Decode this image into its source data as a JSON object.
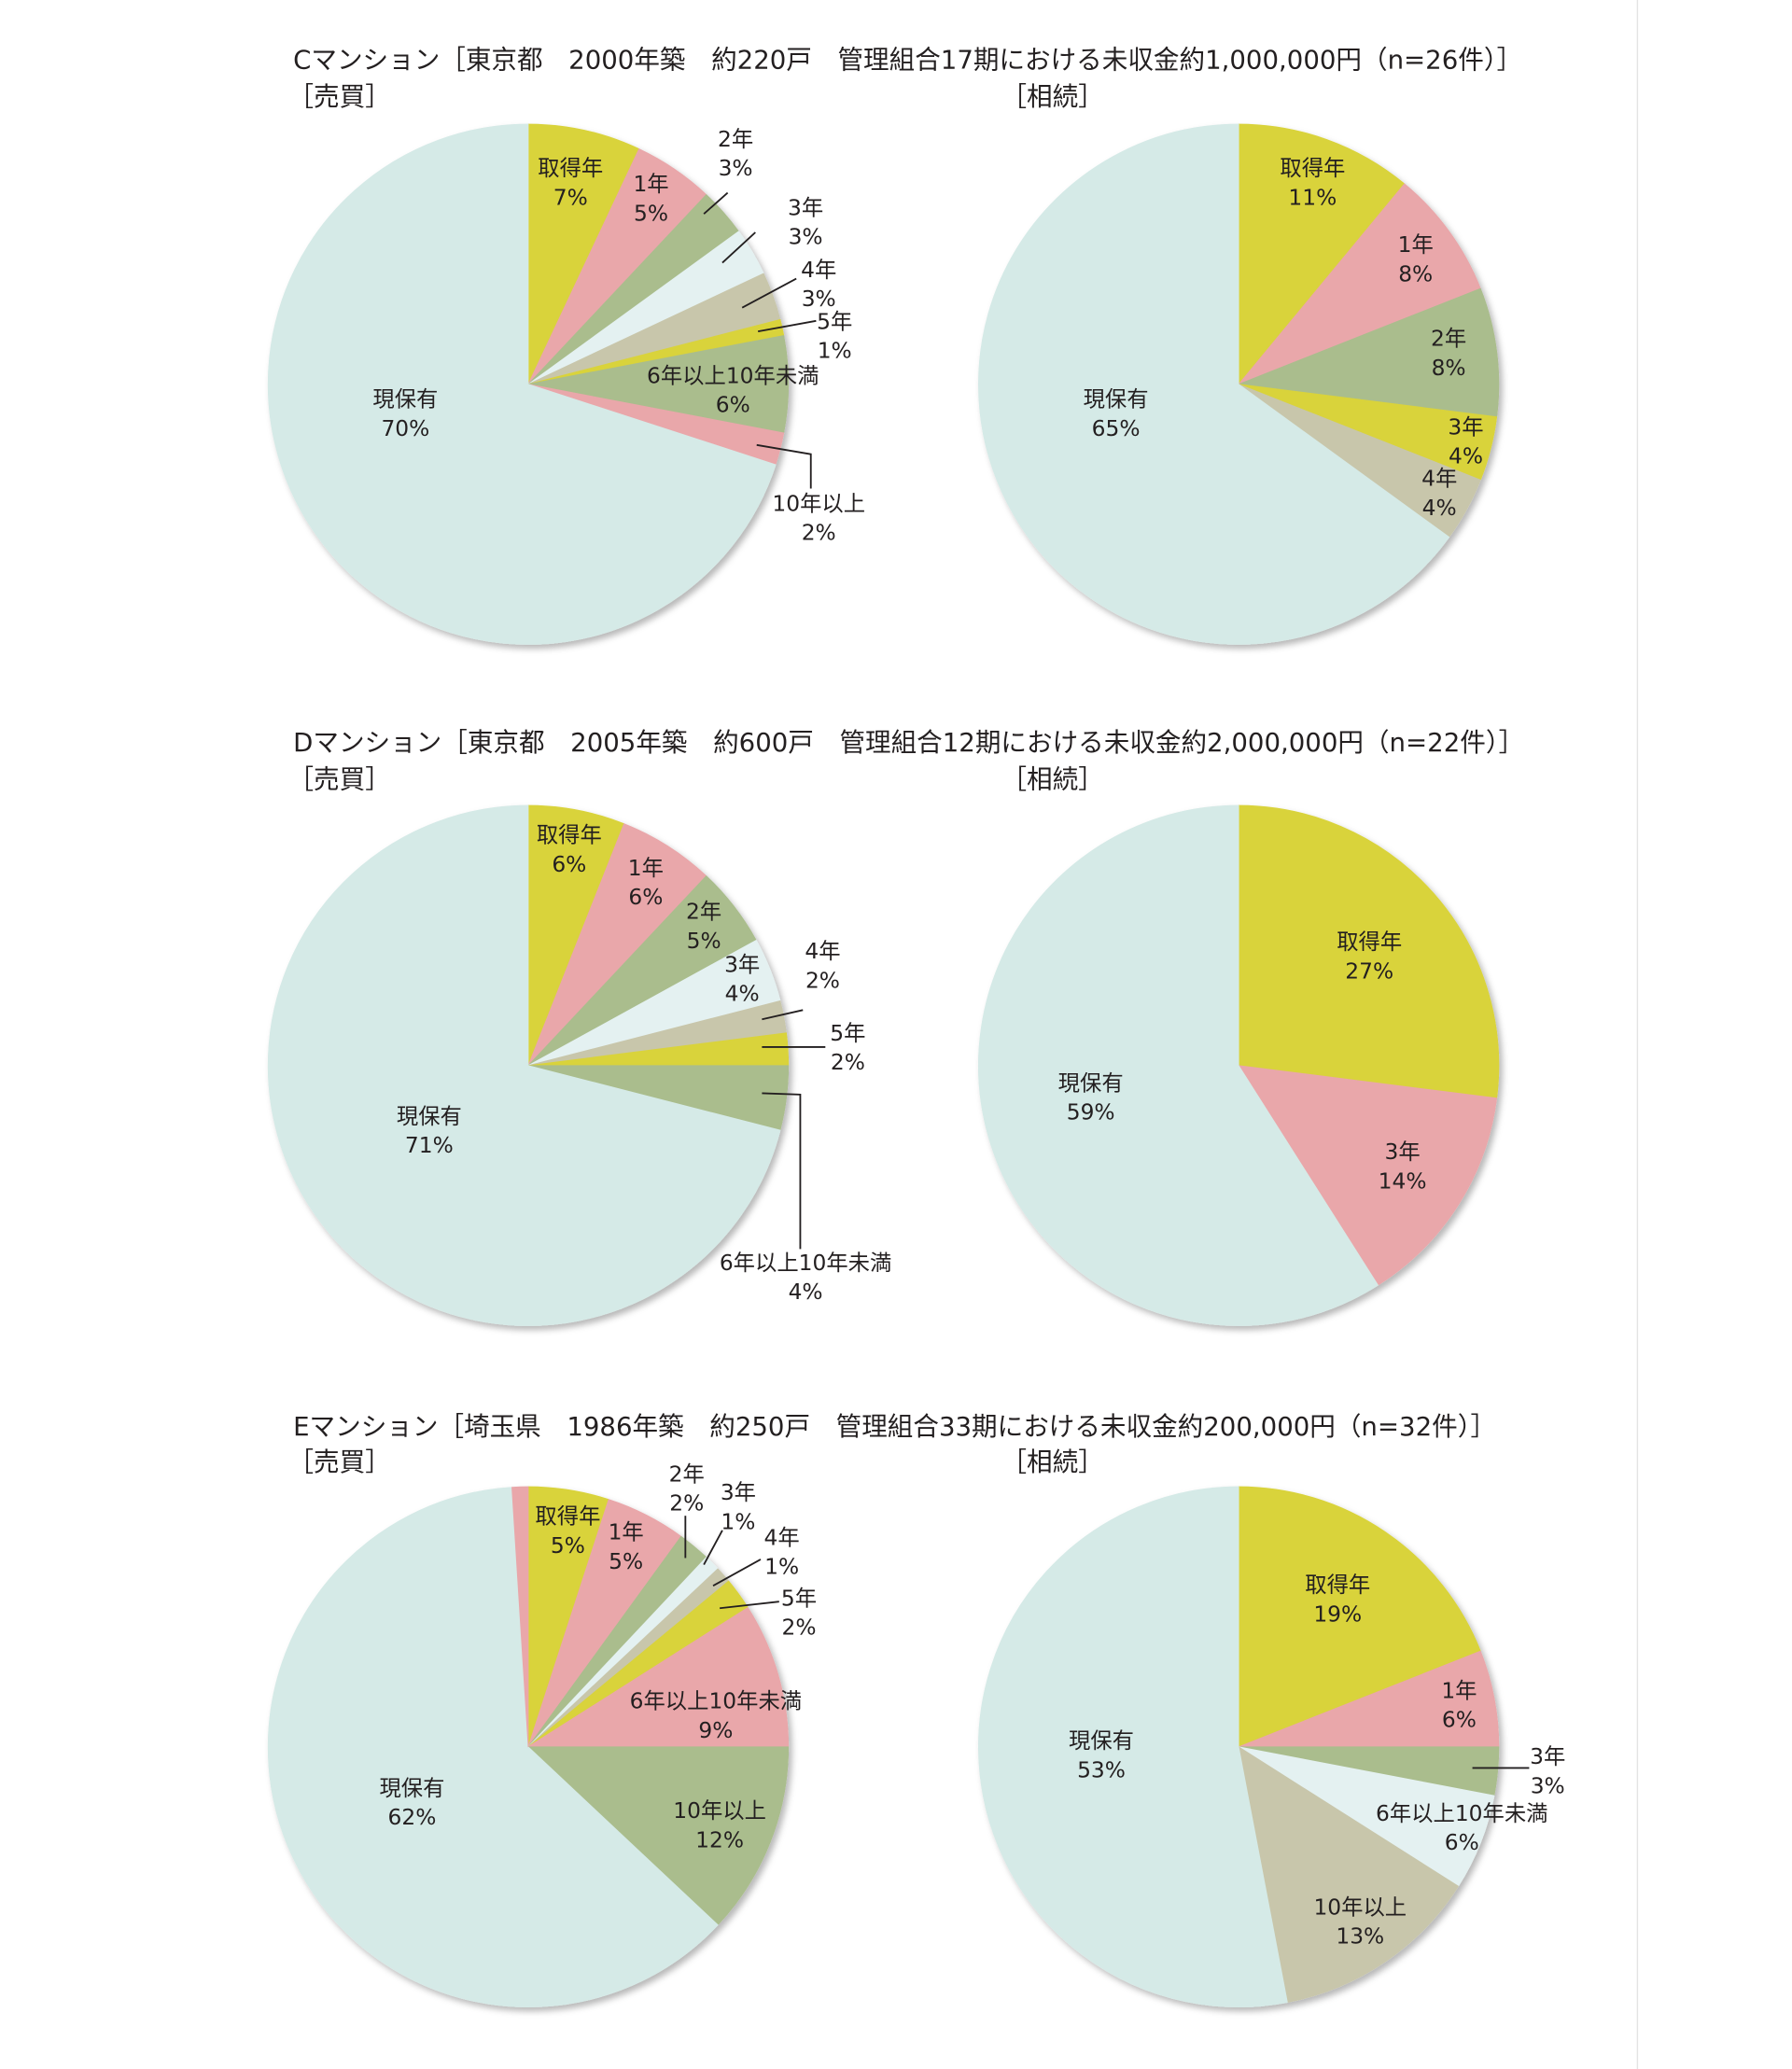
{
  "page": {
    "background": "#ffffff",
    "text_color": "#231f20",
    "edge_line_color": "#e4e4e4"
  },
  "chart_data": [
    {
      "heading": "Cマンション［東京都　2000年築　約220戸　管理組合17期における未収金約1,000,000円（n=26件）］",
      "pies": [
        {
          "type": "pie",
          "title": "［売買］",
          "slices": [
            {
              "label": "取得年",
              "value": 7,
              "value_label": "7%",
              "color": "#d9d33b"
            },
            {
              "label": "1年",
              "value": 5,
              "value_label": "5%",
              "color": "#e9a7aa"
            },
            {
              "label": "2年",
              "value": 3,
              "value_label": "3%",
              "color": "#aabd8d"
            },
            {
              "label": "3年",
              "value": 3,
              "value_label": "3%",
              "color": "#e4f1f1"
            },
            {
              "label": "4年",
              "value": 3,
              "value_label": "3%",
              "color": "#c8c6ab"
            },
            {
              "label": "5年",
              "value": 1,
              "value_label": "1%",
              "color": "#d9d33b"
            },
            {
              "label": "6年以上10年未満",
              "value": 6,
              "value_label": "6%",
              "color": "#aabd8d"
            },
            {
              "label": "10年以上",
              "value": 2,
              "value_label": "2%",
              "color": "#e9a7aa"
            },
            {
              "label": "現保有",
              "value": 70,
              "value_label": "70%",
              "color": "#d5eae7"
            }
          ]
        },
        {
          "type": "pie",
          "title": "［相続］",
          "slices": [
            {
              "label": "取得年",
              "value": 11,
              "value_label": "11%",
              "color": "#d9d33b"
            },
            {
              "label": "1年",
              "value": 8,
              "value_label": "8%",
              "color": "#e9a7aa"
            },
            {
              "label": "2年",
              "value": 8,
              "value_label": "8%",
              "color": "#aabd8d"
            },
            {
              "label": "3年",
              "value": 4,
              "value_label": "4%",
              "color": "#d9d33b"
            },
            {
              "label": "4年",
              "value": 4,
              "value_label": "4%",
              "color": "#c8c6ab"
            },
            {
              "label": "現保有",
              "value": 65,
              "value_label": "65%",
              "color": "#d5eae7"
            }
          ]
        }
      ]
    },
    {
      "heading": "Dマンション［東京都　2005年築　約600戸　管理組合12期における未収金約2,000,000円（n=22件）］",
      "pies": [
        {
          "type": "pie",
          "title": "［売買］",
          "slices": [
            {
              "label": "取得年",
              "value": 6,
              "value_label": "6%",
              "color": "#d9d33b"
            },
            {
              "label": "1年",
              "value": 6,
              "value_label": "6%",
              "color": "#e9a7aa"
            },
            {
              "label": "2年",
              "value": 5,
              "value_label": "5%",
              "color": "#aabd8d"
            },
            {
              "label": "3年",
              "value": 4,
              "value_label": "4%",
              "color": "#e4f1f1"
            },
            {
              "label": "4年",
              "value": 2,
              "value_label": "2%",
              "color": "#c8c6ab"
            },
            {
              "label": "5年",
              "value": 2,
              "value_label": "2%",
              "color": "#d9d33b"
            },
            {
              "label": "6年以上10年未満",
              "value": 4,
              "value_label": "4%",
              "color": "#aabd8d"
            },
            {
              "label": "現保有",
              "value": 71,
              "value_label": "71%",
              "color": "#d5eae7"
            }
          ]
        },
        {
          "type": "pie",
          "title": "［相続］",
          "slices": [
            {
              "label": "取得年",
              "value": 27,
              "value_label": "27%",
              "color": "#d9d33b"
            },
            {
              "label": "3年",
              "value": 14,
              "value_label": "14%",
              "color": "#e9a7aa"
            },
            {
              "label": "現保有",
              "value": 59,
              "value_label": "59%",
              "color": "#d5eae7"
            }
          ]
        }
      ]
    },
    {
      "heading": "Eマンション［埼玉県　1986年築　約250戸　管理組合33期における未収金約200,000円（n=32件）］",
      "pies": [
        {
          "type": "pie",
          "title": "［売買］",
          "slices": [
            {
              "label": "取得年",
              "value": 5,
              "value_label": "5%",
              "color": "#d9d33b"
            },
            {
              "label": "1年",
              "value": 5,
              "value_label": "5%",
              "color": "#e9a7aa"
            },
            {
              "label": "2年",
              "value": 2,
              "value_label": "2%",
              "color": "#aabd8d"
            },
            {
              "label": "3年",
              "value": 1,
              "value_label": "1%",
              "color": "#e4f1f1"
            },
            {
              "label": "4年",
              "value": 1,
              "value_label": "1%",
              "color": "#c8c6ab"
            },
            {
              "label": "5年",
              "value": 2,
              "value_label": "2%",
              "color": "#d9d33b"
            },
            {
              "label": "6年以上10年未満",
              "value": 9,
              "value_label": "9%",
              "color": "#e9a7aa"
            },
            {
              "label": "10年以上",
              "value": 12,
              "value_label": "12%",
              "color": "#aabd8d"
            },
            {
              "label": "現保有",
              "value": 62,
              "value_label": "62%",
              "color": "#d5eae7"
            },
            {
              "value": 1,
              "color": "#e9a7aa"
            }
          ]
        },
        {
          "type": "pie",
          "title": "［相続］",
          "slices": [
            {
              "label": "取得年",
              "value": 19,
              "value_label": "19%",
              "color": "#d9d33b"
            },
            {
              "label": "1年",
              "value": 6,
              "value_label": "6%",
              "color": "#e9a7aa"
            },
            {
              "label": "3年",
              "value": 3,
              "value_label": "3%",
              "color": "#aabd8d"
            },
            {
              "label": "6年以上10年未満",
              "value": 6,
              "value_label": "6%",
              "color": "#e4f1f1"
            },
            {
              "label": "10年以上",
              "value": 13,
              "value_label": "13%",
              "color": "#c8c6ab"
            },
            {
              "label": "現保有",
              "value": 53,
              "value_label": "53%",
              "color": "#d5eae7"
            }
          ]
        }
      ]
    }
  ]
}
